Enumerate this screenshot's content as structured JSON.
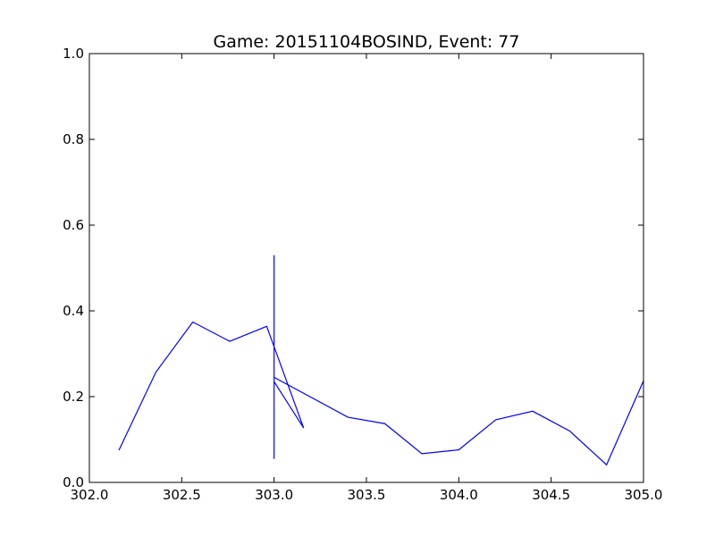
{
  "chart_data": {
    "type": "line",
    "title": "Game: 20151104BOSIND, Event: 77",
    "xlabel": "",
    "ylabel": "",
    "xlim": [
      302.0,
      305.0
    ],
    "ylim": [
      0.0,
      1.0
    ],
    "x_ticks": [
      "302.0",
      "302.5",
      "303.0",
      "303.5",
      "304.0",
      "304.5",
      "305.0"
    ],
    "y_ticks": [
      "0.0",
      "0.2",
      "0.4",
      "0.6",
      "0.8",
      "1.0"
    ],
    "grid": false,
    "line_color": "#0000ff",
    "series": [
      {
        "x": [
          302.16,
          302.36,
          302.56,
          302.76,
          302.96,
          303.16,
          303.0,
          303.0,
          303.0,
          303.0,
          303.0,
          303.0,
          303.4,
          303.6,
          303.8,
          304.0,
          304.2,
          304.4,
          304.6,
          304.8,
          305.0
        ],
        "y": [
          0.075,
          0.257,
          0.374,
          0.329,
          0.364,
          0.127,
          0.235,
          0.53,
          0.055,
          0.445,
          0.125,
          0.245,
          0.152,
          0.137,
          0.067,
          0.076,
          0.146,
          0.166,
          0.12,
          0.041,
          0.237
        ]
      }
    ]
  }
}
